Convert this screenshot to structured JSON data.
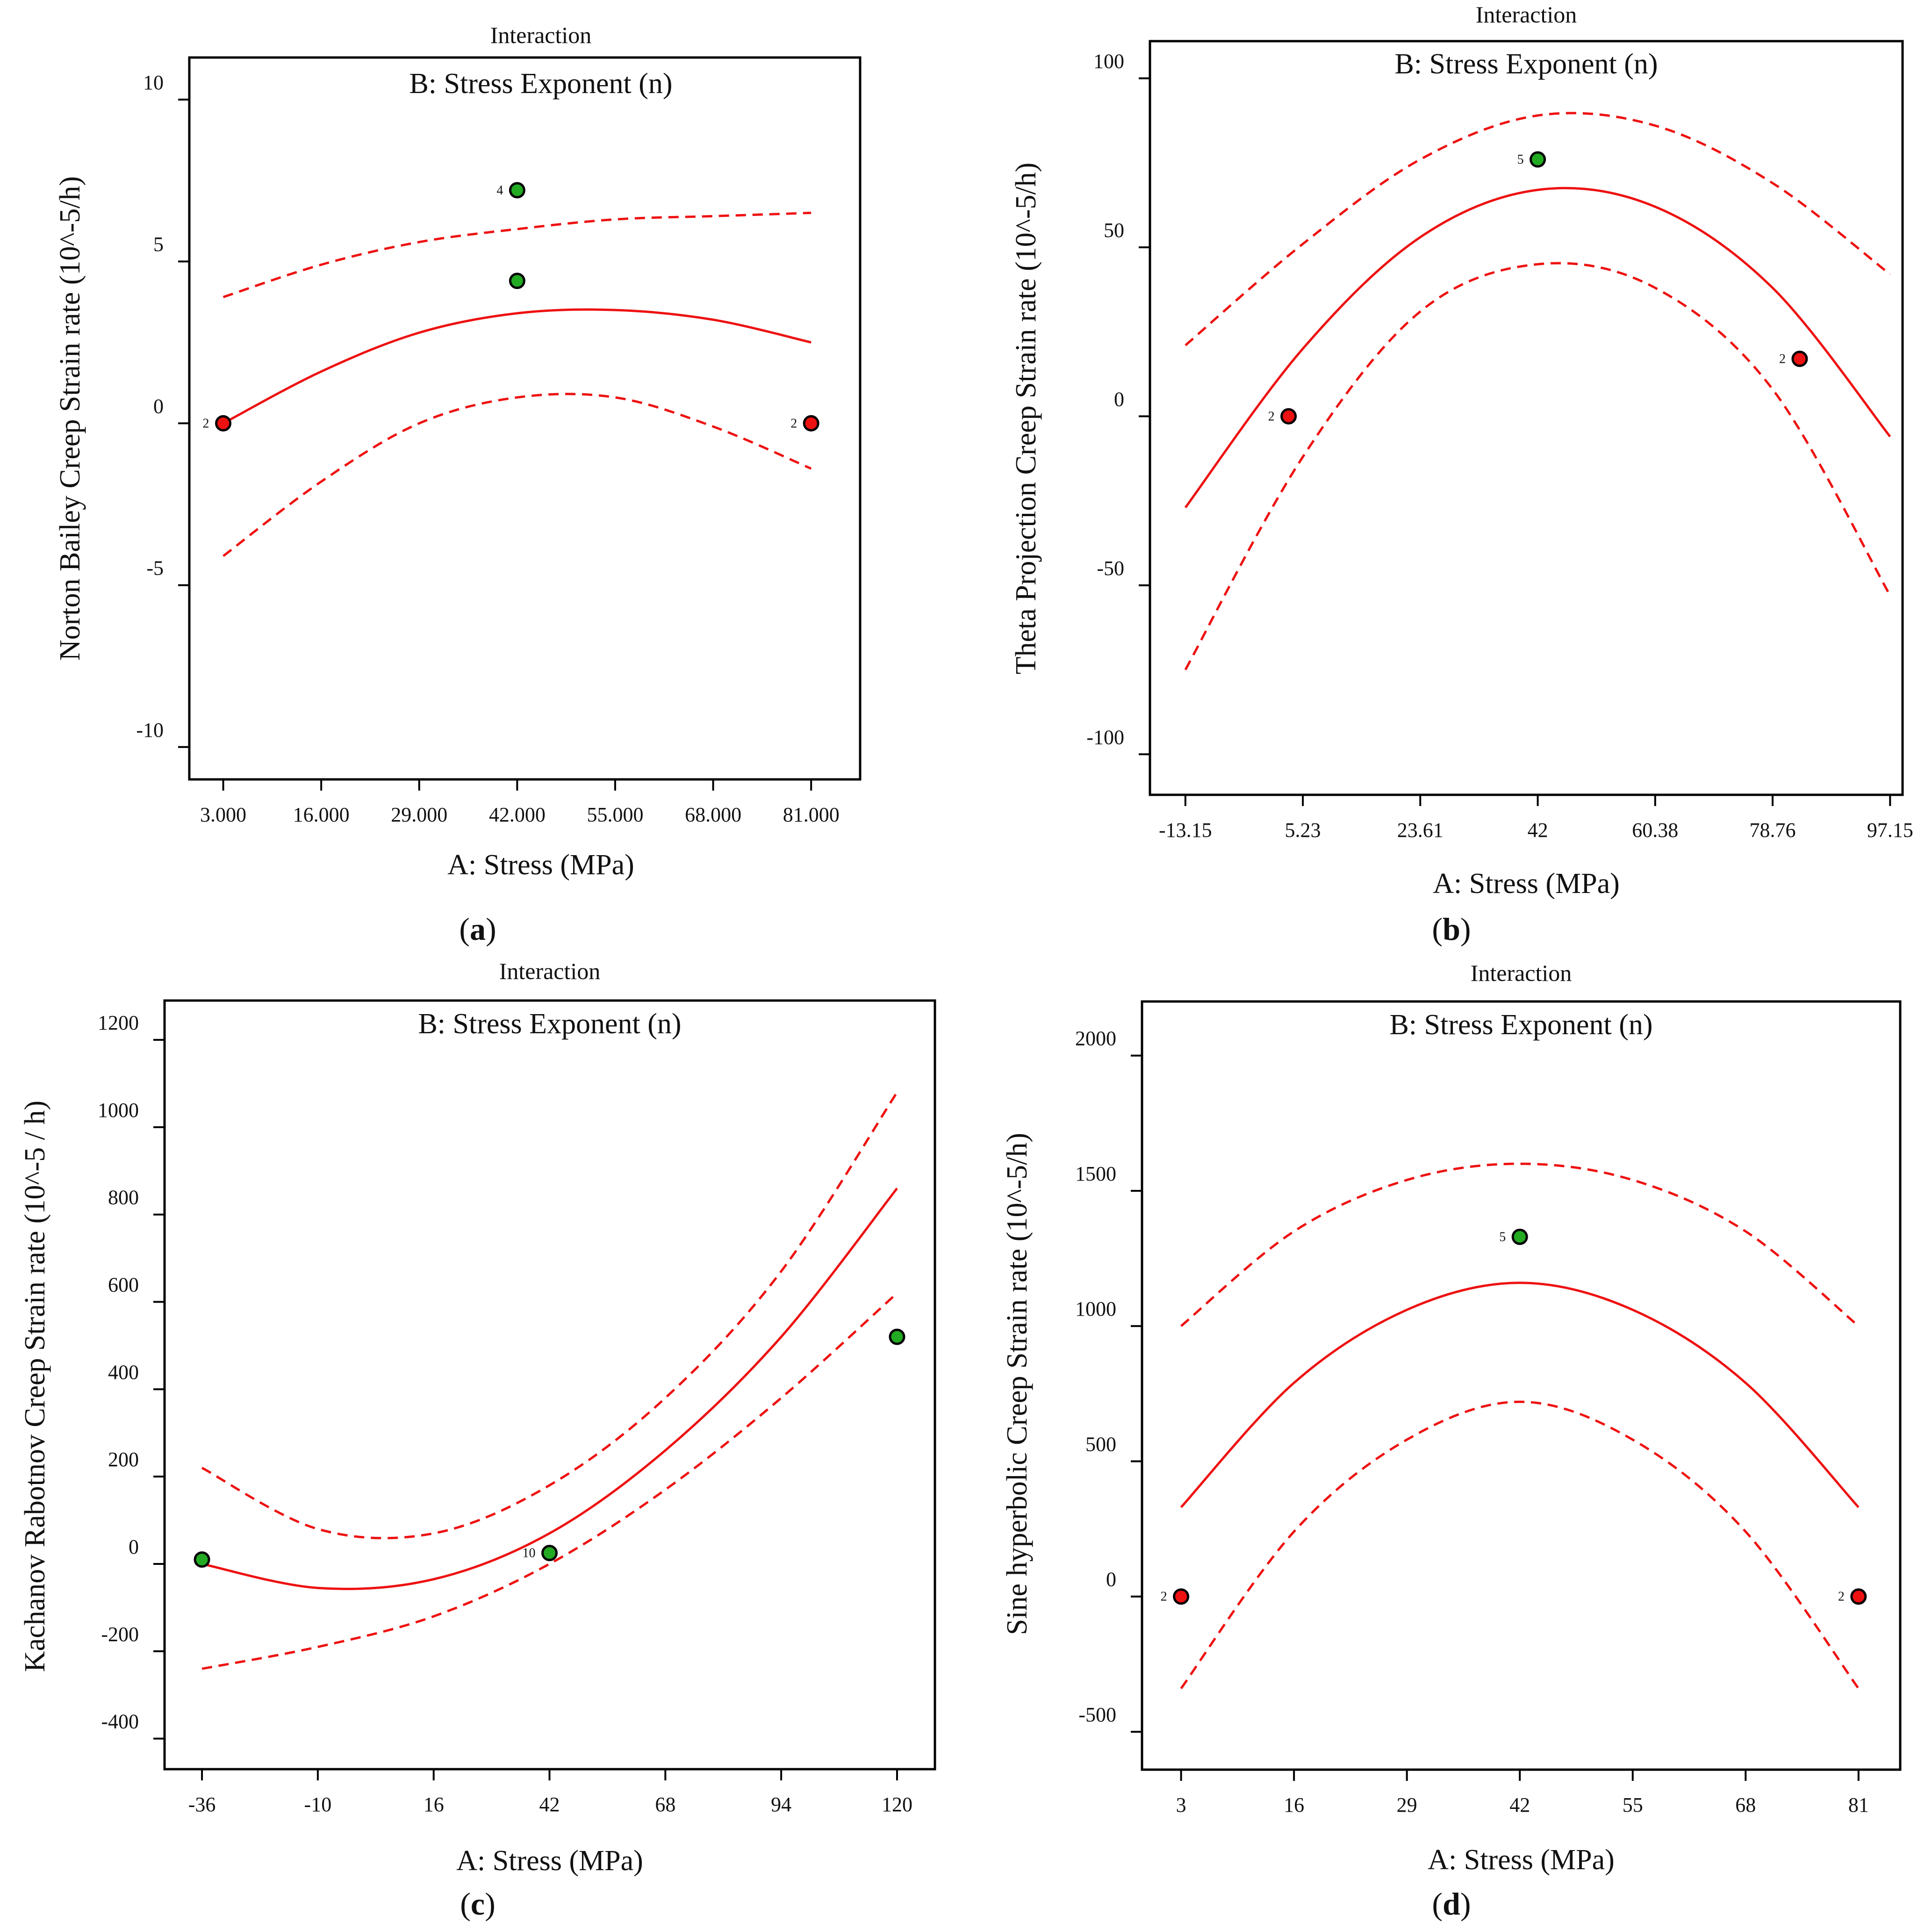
{
  "figure": {
    "captions": [
      {
        "open": "(",
        "letter": "a",
        "close": ")"
      },
      {
        "open": "(",
        "letter": "b",
        "close": ")"
      },
      {
        "open": "(",
        "letter": "c",
        "close": ")"
      },
      {
        "open": "(",
        "letter": "d",
        "close": ")"
      }
    ]
  },
  "colors": {
    "curve": "#ee1111",
    "design_point_green": "#22aa22",
    "design_point_red": "#ee1111",
    "frame": "#000000"
  },
  "chart_data": [
    {
      "panel": "a",
      "type": "line",
      "title": "Interaction",
      "subtitle": "B: Stress Exponent (n)",
      "xlabel": "A: Stress (MPa)",
      "ylabel": "Norton Bailey Creep Strain rate (10^-5/h)",
      "xlim": [
        -1.5,
        87.5
      ],
      "ylim": [
        -11.0,
        11.3
      ],
      "xticks": [
        3,
        16,
        29,
        42,
        55,
        68,
        81
      ],
      "xtick_labels": [
        "3.000",
        "16.000",
        "29.000",
        "42.000",
        "55.000",
        "68.000",
        "81.000"
      ],
      "yticks": [
        10,
        5,
        0,
        -5,
        -10
      ],
      "ytick_labels": [
        "10",
        "5",
        "0",
        "-5",
        "-10"
      ],
      "series": [
        {
          "name": "prediction",
          "style": "solid",
          "x": [
            3,
            16,
            29,
            42,
            55,
            68,
            81
          ],
          "y": [
            0.0,
            1.6,
            2.8,
            3.4,
            3.5,
            3.2,
            2.5
          ]
        },
        {
          "name": "upper interval",
          "style": "dashed",
          "x": [
            3,
            16,
            29,
            42,
            55,
            68,
            81
          ],
          "y": [
            3.9,
            4.9,
            5.6,
            6.0,
            6.3,
            6.4,
            6.5
          ]
        },
        {
          "name": "lower interval",
          "style": "dashed",
          "x": [
            3,
            16,
            29,
            42,
            55,
            68,
            81
          ],
          "y": [
            -4.1,
            -1.8,
            0.0,
            0.8,
            0.8,
            -0.1,
            -1.4
          ]
        }
      ],
      "points": [
        {
          "x": 3,
          "y": 0.0,
          "color": "red",
          "label": "2"
        },
        {
          "x": 42,
          "y": 7.2,
          "color": "green",
          "label": "4"
        },
        {
          "x": 42,
          "y": 4.4,
          "color": "green",
          "label": ""
        },
        {
          "x": 81,
          "y": 0.0,
          "color": "red",
          "label": "2"
        }
      ]
    },
    {
      "panel": "b",
      "type": "line",
      "title": "Interaction",
      "subtitle": "B: Stress Exponent (n)",
      "xlabel": "A: Stress (MPa)",
      "ylabel": "Theta Projection Creep Strain rate (10^-5/h)",
      "xlim": [
        -18.7,
        99.1
      ],
      "ylim": [
        -112,
        111
      ],
      "xticks": [
        -13.15,
        5.23,
        23.61,
        42,
        60.38,
        78.76,
        97.15
      ],
      "xtick_labels": [
        "-13.15",
        "5.23",
        "23.61",
        "42",
        "60.38",
        "78.76",
        "97.15"
      ],
      "yticks": [
        100,
        50,
        0,
        -50,
        -100
      ],
      "ytick_labels": [
        "100",
        "50",
        "0",
        "-50",
        "-100"
      ],
      "series": [
        {
          "name": "prediction",
          "style": "solid",
          "x": [
            -13.15,
            5.23,
            23.61,
            42,
            60.38,
            78.76,
            97.15
          ],
          "y": [
            -27,
            20,
            53,
            67,
            62,
            38,
            -6
          ]
        },
        {
          "name": "upper interval",
          "style": "dashed",
          "x": [
            -13.15,
            5.23,
            23.61,
            42,
            60.38,
            78.76,
            97.15
          ],
          "y": [
            21,
            51,
            76,
            89,
            86,
            69,
            42
          ]
        },
        {
          "name": "lower interval",
          "style": "dashed",
          "x": [
            -13.15,
            5.23,
            23.61,
            42,
            60.38,
            78.76,
            97.15
          ],
          "y": [
            -75,
            -12,
            31,
            45,
            38,
            8,
            -53
          ]
        }
      ],
      "points": [
        {
          "x": 3.0,
          "y": 0,
          "color": "red",
          "label": "2"
        },
        {
          "x": 42,
          "y": 76,
          "color": "green",
          "label": "5"
        },
        {
          "x": 83.0,
          "y": 17,
          "color": "red",
          "label": "2"
        }
      ]
    },
    {
      "panel": "c",
      "type": "line",
      "title": "Interaction",
      "subtitle": "B: Stress Exponent (n)",
      "xlabel": "A: Stress (MPa)",
      "ylabel": "Kachanov Rabotnov Creep Strain rate (10^-5 / h)",
      "xlim": [
        -44.4,
        128.5
      ],
      "ylim": [
        -470,
        1290
      ],
      "xticks": [
        -36,
        -10,
        16,
        42,
        68,
        94,
        120
      ],
      "xtick_labels": [
        "-36",
        "-10",
        "16",
        "42",
        "68",
        "94",
        "120"
      ],
      "yticks": [
        1200,
        1000,
        800,
        600,
        400,
        200,
        0,
        -200,
        -400
      ],
      "ytick_labels": [
        "1200",
        "1000",
        "800",
        "600",
        "400",
        "200",
        "0",
        "-200",
        "-400"
      ],
      "series": [
        {
          "name": "prediction",
          "style": "solid",
          "x": [
            -36,
            -10,
            16,
            42,
            68,
            94,
            120
          ],
          "y": [
            0,
            -55,
            -35,
            70,
            260,
            520,
            860
          ]
        },
        {
          "name": "upper interval",
          "style": "dashed",
          "x": [
            -36,
            -10,
            16,
            42,
            68,
            94,
            120
          ],
          "y": [
            220,
            80,
            70,
            180,
            380,
            670,
            1080
          ]
        },
        {
          "name": "lower interval",
          "style": "dashed",
          "x": [
            -36,
            -10,
            16,
            42,
            68,
            94,
            120
          ],
          "y": [
            -240,
            -190,
            -120,
            0,
            170,
            380,
            620
          ]
        }
      ],
      "points": [
        {
          "x": -36,
          "y": 10,
          "color": "green",
          "label": ""
        },
        {
          "x": 42,
          "y": 25,
          "color": "green",
          "label": "10"
        },
        {
          "x": 120,
          "y": 520,
          "color": "green",
          "label": ""
        }
      ]
    },
    {
      "panel": "d",
      "type": "line",
      "title": "Interaction",
      "subtitle": "B: Stress Exponent (n)",
      "xlabel": "A: Stress (MPa)",
      "ylabel": "Sine hyperbolic Creep Strain rate (10^-5/h)",
      "xlim": [
        -1.5,
        85.8
      ],
      "ylim": [
        -640,
        2200
      ],
      "xticks": [
        3,
        16,
        29,
        42,
        55,
        68,
        81
      ],
      "xtick_labels": [
        "3",
        "16",
        "29",
        "42",
        "55",
        "68",
        "81"
      ],
      "yticks": [
        2000,
        1500,
        1000,
        500,
        0,
        -500
      ],
      "ytick_labels": [
        "2000",
        "1500",
        "1000",
        "500",
        "0",
        "-500"
      ],
      "series": [
        {
          "name": "prediction",
          "style": "solid",
          "x": [
            3,
            16,
            29,
            42,
            55,
            68,
            81
          ],
          "y": [
            330,
            790,
            1060,
            1160,
            1060,
            790,
            330
          ]
        },
        {
          "name": "upper interval",
          "style": "dashed",
          "x": [
            3,
            16,
            29,
            42,
            55,
            68,
            81
          ],
          "y": [
            1000,
            1350,
            1540,
            1600,
            1540,
            1350,
            1000
          ]
        },
        {
          "name": "lower interval",
          "style": "dashed",
          "x": [
            3,
            16,
            29,
            42,
            55,
            68,
            81
          ],
          "y": [
            -340,
            240,
            580,
            720,
            580,
            240,
            -340
          ]
        }
      ],
      "points": [
        {
          "x": 3,
          "y": 0,
          "color": "red",
          "label": "2"
        },
        {
          "x": 42,
          "y": 1330,
          "color": "green",
          "label": "5"
        },
        {
          "x": 81,
          "y": 0,
          "color": "red",
          "label": "2"
        }
      ]
    }
  ]
}
